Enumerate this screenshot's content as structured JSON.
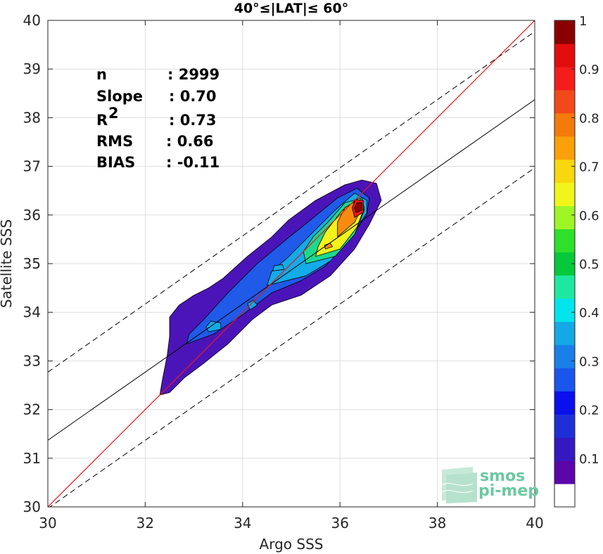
{
  "chart_data": {
    "type": "contour",
    "title": "40°≤|LAT|≤ 60°",
    "xlabel": "Argo SSS",
    "ylabel": "Satellite SSS",
    "xlim": [
      30,
      40
    ],
    "ylim": [
      30,
      40
    ],
    "xticks": [
      "30",
      "32",
      "34",
      "36",
      "38",
      "40"
    ],
    "yticks": [
      "30",
      "31",
      "32",
      "33",
      "34",
      "35",
      "36",
      "37",
      "38",
      "39",
      "40"
    ],
    "grid": true,
    "stats": [
      {
        "label": "n",
        "value": ": 2999"
      },
      {
        "label": "Slope",
        "value": ": 0.70"
      },
      {
        "label": "R",
        "sup": "2",
        "value": ": 0.73"
      },
      {
        "label": "RMS",
        "value": ": 0.66"
      },
      {
        "label": "BIAS",
        "value": ": -0.11"
      }
    ],
    "lines": {
      "identity": {
        "x": [
          30,
          40
        ],
        "y": [
          30,
          40
        ],
        "color": "#e8171d"
      },
      "fit": {
        "x": [
          30,
          40
        ],
        "y": [
          31.37,
          38.37
        ],
        "color": "#000000"
      },
      "fit_upper": {
        "x": [
          30,
          40
        ],
        "y": [
          32.77,
          39.77
        ],
        "style": "dashed"
      },
      "fit_lower": {
        "x": [
          30,
          40
        ],
        "y": [
          29.97,
          36.97
        ],
        "style": "dashed"
      }
    },
    "density_peak": {
      "x": 36.38,
      "y": 36.15
    },
    "colorbar": {
      "ticks": [
        "0.1",
        "0.2",
        "0.3",
        "0.4",
        "0.5",
        "0.6",
        "0.7",
        "0.8",
        "0.9",
        "1"
      ],
      "colors": [
        "#ffffff",
        "#5a06a8",
        "#3618c0",
        "#1f2fd8",
        "#0a0fee",
        "#1a55ec",
        "#1a7fe8",
        "#14a8e6",
        "#00e4ec",
        "#1ee8a0",
        "#05c93a",
        "#2ee02c",
        "#9ef526",
        "#f0f61a",
        "#f9d70e",
        "#f9a00a",
        "#f57a0c",
        "#f2491b",
        "#f51c1c",
        "#e20d0d",
        "#8a0000"
      ]
    },
    "contour_levels": [
      {
        "level": 0.05,
        "color": "#4b14b8",
        "polygon": [
          [
            32.3,
            32.3
          ],
          [
            32.5,
            32.35
          ],
          [
            32.8,
            32.65
          ],
          [
            33.2,
            32.95
          ],
          [
            33.7,
            33.35
          ],
          [
            34.2,
            33.85
          ],
          [
            34.6,
            34.15
          ],
          [
            35.2,
            34.35
          ],
          [
            35.8,
            34.75
          ],
          [
            36.3,
            35.3
          ],
          [
            36.6,
            35.8
          ],
          [
            36.85,
            36.3
          ],
          [
            36.75,
            36.65
          ],
          [
            36.45,
            36.72
          ],
          [
            36.1,
            36.62
          ],
          [
            35.5,
            36.3
          ],
          [
            34.95,
            35.9
          ],
          [
            34.6,
            35.55
          ],
          [
            34.1,
            35.15
          ],
          [
            33.6,
            34.7
          ],
          [
            33.3,
            34.5
          ],
          [
            33.0,
            34.35
          ],
          [
            32.7,
            34.15
          ],
          [
            32.5,
            33.9
          ],
          [
            32.5,
            33.5
          ],
          [
            32.45,
            33.1
          ],
          [
            32.35,
            32.6
          ]
        ]
      },
      {
        "level": 0.2,
        "color": "#1f5ae8",
        "polygon": [
          [
            32.85,
            33.35
          ],
          [
            33.4,
            33.55
          ],
          [
            34.0,
            33.95
          ],
          [
            34.6,
            34.4
          ],
          [
            35.2,
            34.65
          ],
          [
            35.7,
            34.95
          ],
          [
            36.15,
            35.45
          ],
          [
            36.55,
            36.0
          ],
          [
            36.6,
            36.35
          ],
          [
            36.35,
            36.55
          ],
          [
            35.95,
            36.35
          ],
          [
            35.4,
            35.9
          ],
          [
            34.9,
            35.5
          ],
          [
            34.3,
            35.0
          ],
          [
            33.7,
            34.4
          ],
          [
            33.2,
            33.85
          ],
          [
            32.9,
            33.55
          ]
        ]
      },
      {
        "level": 0.3,
        "color": "#13abe8",
        "polygon": [
          [
            34.5,
            34.55
          ],
          [
            35.3,
            34.75
          ],
          [
            35.8,
            35.05
          ],
          [
            36.25,
            35.55
          ],
          [
            36.55,
            36.05
          ],
          [
            36.55,
            36.3
          ],
          [
            36.3,
            36.45
          ],
          [
            35.9,
            36.1
          ],
          [
            35.4,
            35.6
          ],
          [
            34.9,
            35.1
          ],
          [
            34.6,
            34.85
          ]
        ]
      },
      {
        "level": 0.45,
        "color": "#1ed88e",
        "polygon": [
          [
            35.3,
            35.0
          ],
          [
            35.9,
            35.15
          ],
          [
            36.3,
            35.6
          ],
          [
            36.5,
            36.1
          ],
          [
            36.45,
            36.35
          ],
          [
            36.1,
            36.25
          ],
          [
            35.75,
            35.85
          ],
          [
            35.45,
            35.55
          ],
          [
            35.25,
            35.25
          ]
        ]
      },
      {
        "level": 0.6,
        "color": "#f2f21c",
        "polygon": [
          [
            35.5,
            35.15
          ],
          [
            36.0,
            35.3
          ],
          [
            36.35,
            35.75
          ],
          [
            36.5,
            36.15
          ],
          [
            36.4,
            36.35
          ],
          [
            36.05,
            36.1
          ],
          [
            35.7,
            35.65
          ],
          [
            35.55,
            35.35
          ]
        ]
      },
      {
        "level": 0.75,
        "color": "#f88c10",
        "polygon": [
          [
            35.95,
            35.55
          ],
          [
            36.3,
            35.85
          ],
          [
            36.45,
            36.15
          ],
          [
            36.35,
            36.3
          ],
          [
            36.1,
            36.15
          ],
          [
            35.95,
            35.85
          ]
        ]
      },
      {
        "level": 0.9,
        "color": "#e81616",
        "polygon": [
          [
            36.3,
            35.95
          ],
          [
            36.48,
            36.05
          ],
          [
            36.48,
            36.3
          ],
          [
            36.32,
            36.32
          ],
          [
            36.25,
            36.15
          ]
        ]
      },
      {
        "level": 1.0,
        "color": "#8a0000",
        "polygon": [
          [
            36.33,
            36.05
          ],
          [
            36.45,
            36.1
          ],
          [
            36.45,
            36.25
          ],
          [
            36.35,
            36.25
          ],
          [
            36.3,
            36.15
          ]
        ]
      }
    ],
    "contour_islands": [
      {
        "color": "#13abe8",
        "polygon": [
          [
            33.3,
            33.6
          ],
          [
            33.55,
            33.65
          ],
          [
            33.55,
            33.78
          ],
          [
            33.35,
            33.82
          ],
          [
            33.25,
            33.7
          ]
        ]
      },
      {
        "color": "#13abe8",
        "polygon": [
          [
            34.15,
            34.05
          ],
          [
            34.3,
            34.15
          ],
          [
            34.22,
            34.25
          ],
          [
            34.1,
            34.18
          ]
        ]
      },
      {
        "color": "#13abe8",
        "polygon": [
          [
            34.62,
            34.85
          ],
          [
            34.85,
            34.88
          ],
          [
            34.82,
            34.98
          ],
          [
            34.65,
            34.96
          ]
        ]
      },
      {
        "color": "#f88c10",
        "polygon": [
          [
            35.7,
            35.3
          ],
          [
            35.85,
            35.35
          ],
          [
            35.8,
            35.42
          ],
          [
            35.68,
            35.38
          ]
        ]
      }
    ]
  },
  "logo": {
    "line1": "smos",
    "line2": "pi-mep"
  }
}
